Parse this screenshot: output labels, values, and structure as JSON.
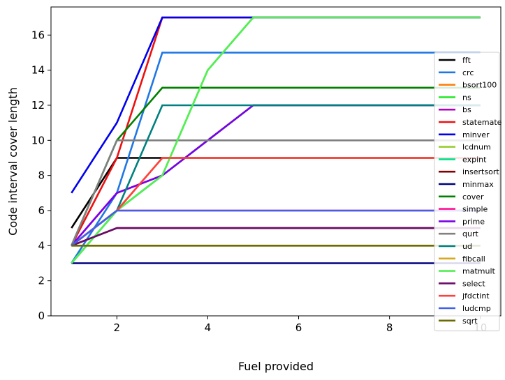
{
  "chart_data": {
    "type": "line",
    "title": "",
    "xlabel": "Fuel provided",
    "ylabel": "Code interval cover length",
    "xlim": [
      0.55,
      10.45
    ],
    "ylim": [
      0,
      17.6
    ],
    "xticks": [
      2,
      4,
      6,
      8,
      10
    ],
    "yticks": [
      0,
      2,
      4,
      6,
      8,
      10,
      12,
      14,
      16
    ],
    "x": [
      1,
      2,
      3,
      4,
      5,
      6,
      7,
      8,
      9,
      10
    ],
    "grid": false,
    "legend_position": "right",
    "series": [
      {
        "name": "fft",
        "color": "#000000",
        "values": [
          5,
          9,
          9,
          9,
          9,
          9,
          9,
          9,
          9,
          9
        ]
      },
      {
        "name": "crc",
        "color": "#1f77e4",
        "values": [
          3,
          7,
          15,
          15,
          15,
          15,
          15,
          15,
          15,
          15
        ]
      },
      {
        "name": "bsort100",
        "color": "#ff7f0e",
        "values": [
          4,
          6,
          9,
          9,
          9,
          9,
          9,
          9,
          9,
          9
        ]
      },
      {
        "name": "ns",
        "color": "#2ee82e",
        "values": [
          3,
          6,
          8,
          14,
          17,
          17,
          17,
          17,
          17,
          17
        ]
      },
      {
        "name": "bs",
        "color": "#b000c0",
        "values": [
          4,
          7,
          8,
          10,
          12,
          12,
          12,
          12,
          12,
          12
        ]
      },
      {
        "name": "statemate",
        "color": "#ee1010",
        "values": [
          4,
          9,
          17,
          17,
          17,
          17,
          17,
          17,
          17,
          17
        ]
      },
      {
        "name": "minver",
        "color": "#0000ee",
        "values": [
          7,
          11,
          17,
          17,
          17,
          17,
          17,
          17,
          17,
          17
        ]
      },
      {
        "name": "lcdnum",
        "color": "#9acd32",
        "values": [
          3,
          6,
          8,
          10,
          12,
          12,
          12,
          12,
          12,
          12
        ]
      },
      {
        "name": "expint",
        "color": "#00e08a",
        "values": [
          3,
          6,
          8,
          10,
          12,
          12,
          12,
          12,
          12,
          12
        ]
      },
      {
        "name": "insertsort",
        "color": "#7f0000",
        "values": [
          4,
          5,
          5,
          5,
          5,
          5,
          5,
          5,
          5,
          5
        ]
      },
      {
        "name": "minmax",
        "color": "#000080",
        "values": [
          3,
          3,
          3,
          3,
          3,
          3,
          3,
          3,
          3,
          3
        ]
      },
      {
        "name": "cover",
        "color": "#008000",
        "values": [
          4,
          10,
          13,
          13,
          13,
          13,
          13,
          13,
          13,
          13
        ]
      },
      {
        "name": "simple",
        "color": "#ff1493",
        "values": [
          4,
          6,
          6,
          6,
          6,
          6,
          6,
          6,
          6,
          6
        ]
      },
      {
        "name": "prime",
        "color": "#7b00e8",
        "values": [
          4,
          7,
          8,
          10,
          12,
          12,
          12,
          12,
          12,
          12
        ]
      },
      {
        "name": "qurt",
        "color": "#808080",
        "values": [
          4,
          10,
          10,
          10,
          10,
          10,
          10,
          10,
          10,
          10
        ]
      },
      {
        "name": "ud",
        "color": "#008080",
        "values": [
          4,
          6,
          12,
          12,
          12,
          12,
          12,
          12,
          12,
          12
        ]
      },
      {
        "name": "fibcall",
        "color": "#daa520",
        "values": [
          4,
          4,
          4,
          4,
          4,
          4,
          4,
          4,
          4,
          4
        ]
      },
      {
        "name": "matmult",
        "color": "#55ee55",
        "values": [
          3,
          6,
          8,
          14,
          17,
          17,
          17,
          17,
          17,
          17
        ]
      },
      {
        "name": "select",
        "color": "#6b0a6b",
        "values": [
          4,
          5,
          5,
          5,
          5,
          5,
          5,
          5,
          5,
          5
        ]
      },
      {
        "name": "jfdctint",
        "color": "#ff4040",
        "values": [
          4,
          6,
          9,
          9,
          9,
          9,
          9,
          9,
          9,
          9
        ]
      },
      {
        "name": "ludcmp",
        "color": "#4060e8",
        "values": [
          4,
          6,
          6,
          6,
          6,
          6,
          6,
          6,
          6,
          6
        ]
      },
      {
        "name": "sqrt",
        "color": "#6b6b00",
        "values": [
          4,
          4,
          4,
          4,
          4,
          4,
          4,
          4,
          4,
          4
        ]
      }
    ]
  }
}
